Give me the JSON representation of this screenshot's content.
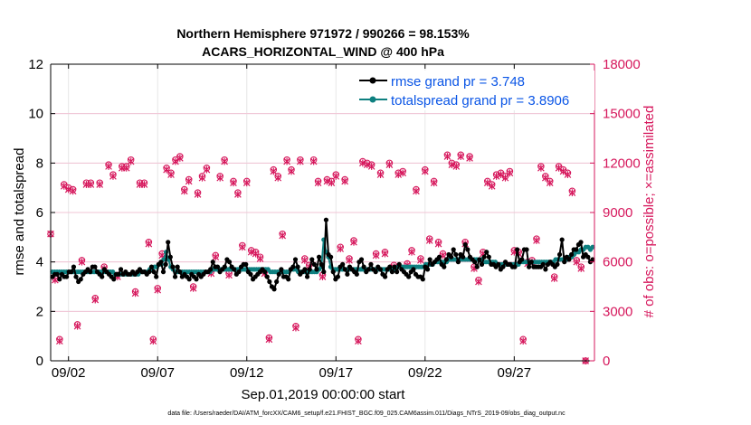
{
  "chart_data": {
    "type": "line",
    "title_line1": "Northern Hemisphere 971972 / 990266 = 98.153%",
    "title_line2": "ACARS_HORIZONTAL_WIND @ 400 hPa",
    "xlabel": "Sep.01,2019 00:00:00 start",
    "ylabel_left": "rmse and totalspread",
    "ylabel_right": "# of obs: o=possible; ×=assimilated",
    "footnote": "data file: /Users/raeder/DAI/ATM_forcXX/CAM6_setup/f.e21.FHIST_BGC.f09_025.CAM6assim.011/Diags_NTrS_2019-09/obs_diag_output.nc",
    "xlim": [
      0,
      30.5
    ],
    "ylim_left": [
      0,
      12
    ],
    "ylim_right": [
      0,
      18000
    ],
    "x_ticks": [
      1,
      6,
      11,
      16,
      21,
      26
    ],
    "x_tick_labels": [
      "09/02",
      "09/07",
      "09/12",
      "09/17",
      "09/22",
      "09/27"
    ],
    "y_left_ticks": [
      "0",
      "2",
      "4",
      "6",
      "8",
      "10",
      "12"
    ],
    "y_right_ticks": [
      "0",
      "3000",
      "6000",
      "9000",
      "12000",
      "15000",
      "18000"
    ],
    "colors": {
      "rmse": "#000000",
      "spread": "#0e8080",
      "obs": "#d6175c",
      "legend_text": "#0a55e6"
    },
    "legend": [
      {
        "name": "rmse grand pr = 3.748"
      },
      {
        "name": "totalspread grand pr = 3.8906"
      }
    ],
    "series": [
      {
        "name": "rmse",
        "axis": "left",
        "values": [
          3.4,
          3.5,
          3.5,
          3.3,
          3.5,
          3.4,
          3.4,
          3.6,
          3.6,
          3.8,
          3.4,
          3.2,
          3.3,
          3.5,
          3.6,
          3.7,
          3.6,
          3.8,
          3.8,
          3.6,
          3.5,
          3.4,
          3.7,
          3.6,
          3.5,
          3.4,
          3.3,
          3.5,
          3.5,
          3.7,
          3.5,
          3.6,
          3.5,
          3.5,
          3.6,
          3.5,
          3.6,
          3.7,
          3.6,
          3.6,
          3.5,
          3.6,
          3.8,
          3.6,
          3.4,
          3.9,
          4.0,
          3.6,
          3.9,
          4.8,
          4.2,
          3.8,
          3.4,
          3.8,
          3.6,
          3.4,
          3.5,
          3.4,
          3.3,
          3.5,
          3.4,
          3.3,
          3.5,
          3.4,
          3.5,
          3.6,
          3.6,
          3.7,
          4.0,
          3.8,
          3.8,
          3.6,
          3.7,
          3.8,
          4.1,
          4.0,
          3.8,
          3.7,
          3.5,
          3.6,
          3.8,
          3.9,
          3.9,
          3.6,
          3.5,
          3.3,
          3.4,
          3.5,
          3.6,
          3.7,
          3.6,
          3.4,
          3.2,
          3.0,
          2.9,
          3.2,
          3.5,
          3.7,
          3.4,
          3.4,
          3.3,
          3.7,
          3.8,
          4.1,
          3.8,
          3.5,
          3.6,
          3.7,
          3.4,
          3.7,
          4.1,
          3.9,
          3.7,
          4.2,
          3.9,
          3.6,
          5.7,
          4.3,
          4.2,
          3.6,
          3.3,
          3.4,
          3.8,
          3.9,
          3.7,
          3.5,
          3.8,
          3.7,
          3.6,
          3.5,
          4.0,
          4.1,
          3.8,
          3.6,
          3.7,
          3.9,
          3.7,
          3.6,
          3.8,
          3.7,
          3.5,
          3.4,
          3.7,
          3.8,
          3.6,
          3.8,
          3.6,
          3.9,
          3.7,
          3.6,
          3.5,
          3.4,
          3.6,
          3.7,
          3.5,
          3.4,
          3.4,
          3.3,
          3.8,
          3.7,
          4.1,
          3.9,
          4.0,
          4.1,
          4.2,
          3.9,
          3.8,
          4.1,
          4.3,
          4.2,
          4.5,
          4.3,
          4.0,
          4.3,
          4.2,
          4.7,
          4.5,
          4.2,
          4.1,
          4.0,
          3.8,
          4.1,
          3.9,
          4.2,
          4.4,
          4.2,
          3.9,
          3.9,
          3.8,
          3.9,
          3.7,
          3.8,
          4.0,
          3.9,
          3.9,
          3.8,
          3.8,
          4.5,
          4.0,
          4.1,
          4.5,
          4.5,
          3.8,
          4.0,
          3.8,
          3.8,
          3.8,
          3.8,
          3.9,
          3.7,
          3.9,
          4.0,
          3.9,
          3.8,
          3.9,
          4.3,
          4.9,
          4.0,
          4.2,
          4.1,
          4.3,
          4.5,
          4.5,
          4.7,
          4.8,
          4.2,
          4.3,
          4.2,
          4.0,
          4.1
        ]
      },
      {
        "name": "totalspread",
        "axis": "left",
        "values": [
          3.6,
          3.6,
          3.6,
          3.6,
          3.6,
          3.6,
          3.6,
          3.6,
          3.6,
          3.6,
          3.6,
          3.6,
          3.6,
          3.6,
          3.6,
          3.6,
          3.6,
          3.6,
          3.6,
          3.6,
          3.6,
          3.6,
          3.6,
          3.6,
          3.6,
          3.6,
          3.6,
          3.5,
          3.5,
          3.5,
          3.5,
          3.5,
          3.5,
          3.5,
          3.5,
          3.5,
          3.5,
          3.5,
          3.6,
          3.6,
          3.6,
          3.6,
          3.7,
          3.7,
          3.8,
          3.8,
          3.9,
          3.9,
          4.1,
          4.4,
          4.1,
          3.8,
          3.7,
          3.6,
          3.6,
          3.6,
          3.6,
          3.6,
          3.6,
          3.6,
          3.6,
          3.6,
          3.6,
          3.6,
          3.6,
          3.6,
          3.6,
          3.6,
          3.6,
          3.7,
          3.7,
          3.7,
          3.7,
          3.7,
          3.7,
          3.7,
          3.7,
          3.7,
          3.7,
          3.7,
          3.7,
          3.7,
          3.7,
          3.7,
          3.7,
          3.7,
          3.7,
          3.7,
          3.7,
          3.7,
          3.7,
          3.7,
          3.7,
          3.7,
          3.6,
          3.6,
          3.6,
          3.6,
          3.6,
          3.6,
          3.6,
          3.6,
          3.6,
          3.7,
          3.7,
          3.7,
          3.6,
          3.6,
          3.6,
          3.6,
          3.6,
          3.6,
          3.6,
          3.6,
          3.6,
          3.7,
          3.8,
          4.9,
          4.4,
          4.2,
          3.8,
          3.7,
          3.7,
          3.7,
          3.7,
          3.7,
          3.7,
          3.7,
          3.7,
          3.7,
          3.7,
          3.7,
          3.7,
          3.7,
          3.7,
          3.7,
          3.7,
          3.7,
          3.7,
          3.7,
          3.7,
          3.7,
          3.7,
          3.7,
          3.7,
          3.7,
          3.7,
          3.7,
          3.7,
          3.8,
          3.8,
          3.8,
          3.8,
          3.8,
          3.8,
          3.8,
          3.8,
          3.8,
          3.8,
          3.8,
          3.8,
          3.9,
          3.9,
          3.9,
          3.9,
          4.0,
          4.0,
          4.0,
          4.0,
          4.0,
          4.0,
          4.1,
          4.1,
          4.1,
          4.1,
          4.1,
          4.1,
          4.1,
          4.1,
          4.1,
          4.1,
          4.1,
          4.1,
          4.1,
          4.1,
          4.1,
          4.0,
          4.0,
          4.0,
          4.0,
          4.0,
          4.0,
          3.9,
          3.9,
          3.9,
          3.9,
          3.9,
          3.9,
          3.9,
          3.9,
          3.9,
          3.9,
          4.0,
          4.0,
          4.0,
          4.0,
          4.0,
          4.0,
          4.0,
          4.0,
          4.0,
          4.0,
          4.0,
          4.0,
          4.0,
          4.0,
          4.0,
          4.1,
          4.1,
          4.1,
          4.1,
          4.1,
          4.1,
          4.2,
          4.2,
          4.3,
          4.4,
          4.4,
          4.5,
          4.5,
          4.6,
          4.6,
          4.5,
          4.6
        ]
      },
      {
        "name": "obs possible",
        "axis": "right",
        "marker": "o",
        "values": [
          7700,
          5000,
          1300,
          10700,
          10500,
          10400,
          2200,
          6100,
          10800,
          10800,
          3800,
          10800,
          5700,
          11900,
          11300,
          5200,
          11800,
          11800,
          12200,
          4200,
          10800,
          10800,
          7200,
          1300,
          4400,
          6500,
          11700,
          11400,
          12200,
          12400,
          10400,
          11000,
          4500,
          10200,
          11200,
          11700,
          5400,
          6400,
          11200,
          12200,
          5300,
          10900,
          10200,
          7000,
          10900,
          6700,
          6600,
          6300,
          5400,
          1400,
          11600,
          11200,
          7700,
          12200,
          11600,
          2100,
          12200,
          6200,
          5800,
          12200,
          10900,
          5200,
          11000,
          10900,
          11300,
          6900,
          11000,
          6200,
          7300,
          1300,
          12100,
          12000,
          11900,
          6500,
          11400,
          6600,
          12000,
          5800,
          11400,
          11500,
          5900,
          6700,
          10400,
          6200,
          11600,
          7400,
          10900,
          7200,
          6500,
          12500,
          12000,
          11900,
          12500,
          7200,
          12400,
          5700,
          4900,
          6600,
          10900,
          10700,
          11300,
          11400,
          11200,
          11500,
          6700,
          6600,
          1300,
          6000,
          6100,
          7400,
          11800,
          11200,
          10900,
          5100,
          11800,
          11600,
          11400,
          10300,
          6100,
          5700,
          0
        ]
      },
      {
        "name": "obs assimilated",
        "axis": "right",
        "marker": "x",
        "values": [
          7700,
          4900,
          1200,
          10600,
          10400,
          10300,
          2100,
          6000,
          10700,
          10700,
          3700,
          10700,
          5600,
          11800,
          11200,
          5100,
          11700,
          11700,
          12100,
          4100,
          10700,
          10700,
          7100,
          1200,
          4300,
          6400,
          11600,
          11300,
          12100,
          12300,
          10300,
          10900,
          4400,
          10100,
          11100,
          11600,
          5300,
          6300,
          11100,
          12100,
          5200,
          10800,
          10100,
          6900,
          10800,
          6600,
          6500,
          6200,
          5300,
          1300,
          11500,
          11100,
          7600,
          12100,
          11500,
          2000,
          12100,
          6100,
          5700,
          12100,
          10800,
          5100,
          10900,
          10800,
          11200,
          6800,
          10900,
          6100,
          7200,
          1200,
          12000,
          11900,
          11800,
          6400,
          11300,
          6500,
          11900,
          5700,
          11300,
          11400,
          5800,
          6600,
          10300,
          6100,
          11500,
          7300,
          10800,
          7100,
          6400,
          12400,
          11900,
          11800,
          12400,
          7100,
          12300,
          5600,
          4800,
          6500,
          10800,
          10600,
          11200,
          11300,
          11100,
          11400,
          6600,
          6500,
          1200,
          5900,
          6000,
          7300,
          11700,
          11100,
          10800,
          5000,
          11700,
          11500,
          11300,
          10200,
          6000,
          5600,
          0
        ]
      }
    ]
  }
}
